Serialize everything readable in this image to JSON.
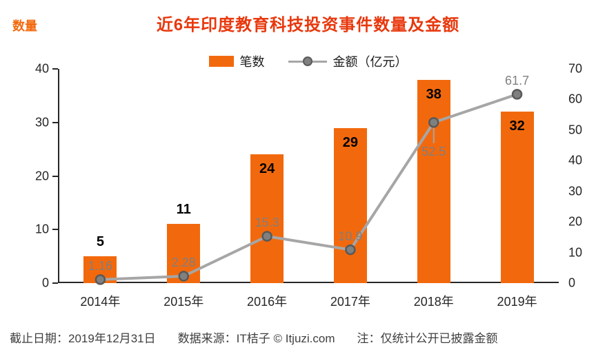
{
  "title": "近6年印度教育科技投资事件数量及金额",
  "left_axis_title": "数量",
  "legend": {
    "bars_label": "笔数",
    "line_label": "金额（亿元）"
  },
  "footer": {
    "date": "截止日期：2019年12月31日",
    "source": "数据来源：IT桔子 © Itjuzi.com",
    "note": "注：仅统计公开已披露金额"
  },
  "colors": {
    "bar": "#F2690D",
    "title": "#E8380D",
    "y_axis_title": "#F2690D",
    "line": "#A6A6A6",
    "marker_fill": "#808080",
    "marker_stroke": "#595959",
    "line_label": "#7F7F7F",
    "bar_label": "#000000",
    "axis_text": "#262626",
    "axis_line": "#262626",
    "footer_text": "#3F3F3F"
  },
  "chart_data": {
    "type": "bar",
    "subtype": "bar-line-combo",
    "title": "近6年印度教育科技投资事件数量及金额",
    "categories": [
      "2014年",
      "2015年",
      "2016年",
      "2017年",
      "2018年",
      "2019年"
    ],
    "series": [
      {
        "name": "笔数",
        "type": "bar",
        "axis": "left",
        "values": [
          5,
          11,
          24,
          29,
          38,
          32
        ]
      },
      {
        "name": "金额（亿元）",
        "type": "line",
        "axis": "right",
        "values": [
          1.16,
          2.28,
          15.3,
          10.9,
          52.5,
          61.7
        ]
      }
    ],
    "left_axis": {
      "label": "数量",
      "min": 0,
      "max": 40,
      "step": 10
    },
    "right_axis": {
      "label": "金额（亿元）",
      "min": 0,
      "max": 70,
      "step": 10
    },
    "legend_position": "top-center",
    "grid": false,
    "line_label_sides": [
      "above",
      "above",
      "above",
      "above",
      "below",
      "above"
    ],
    "bar_label_positions": [
      "above",
      "above",
      "inside",
      "inside",
      "inside",
      "inside"
    ]
  }
}
